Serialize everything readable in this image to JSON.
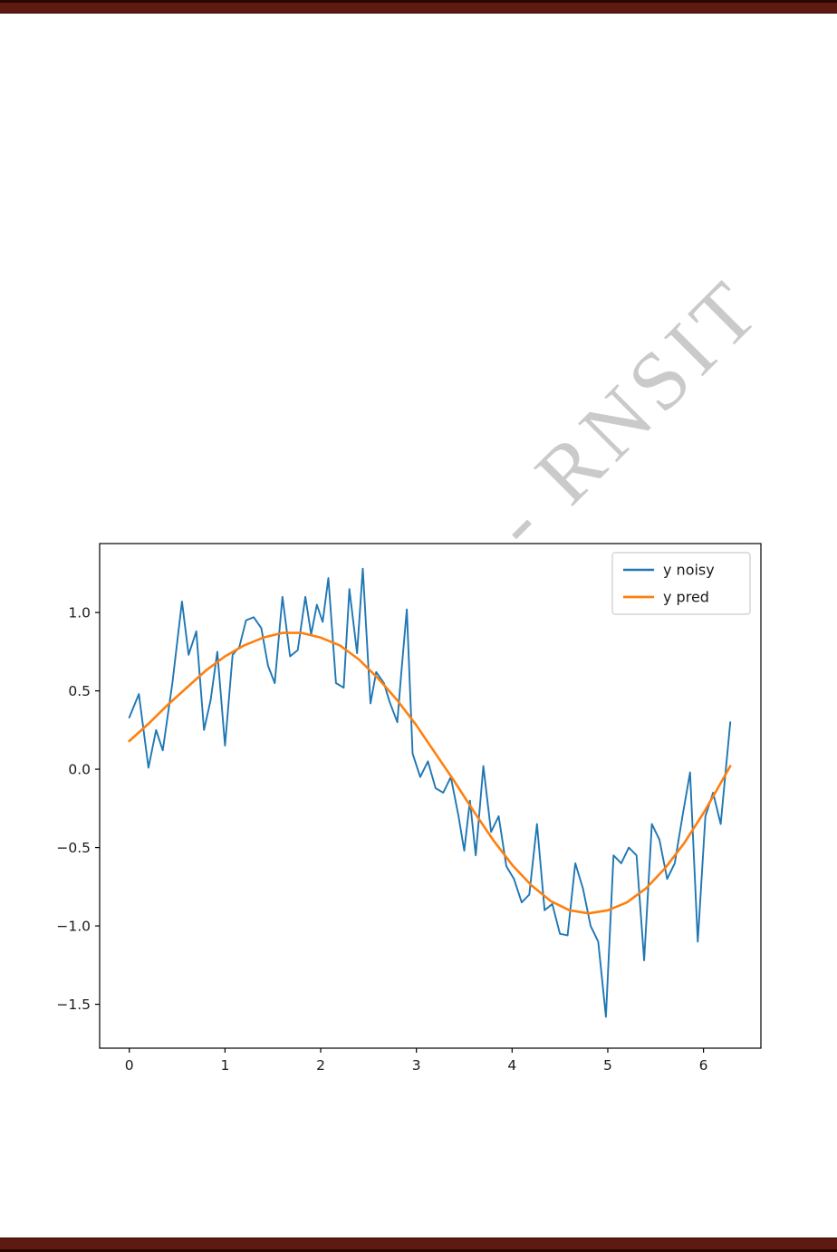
{
  "page": {
    "background_color": "#ffffff",
    "border_color": "#5e1a10"
  },
  "watermark": {
    "text": "- RNSIT",
    "color": "#b9b9b9"
  },
  "chart_data": {
    "type": "line",
    "title": "",
    "xlabel": "",
    "ylabel": "",
    "xlim": [
      -0.31,
      6.6
    ],
    "ylim": [
      -1.78,
      1.44
    ],
    "xticks": [
      0,
      1,
      2,
      3,
      4,
      5,
      6
    ],
    "yticks": [
      -1.5,
      -1.0,
      -0.5,
      0.0,
      0.5,
      1.0
    ],
    "grid": false,
    "legend_position": "upper right",
    "colors": {
      "noisy": "#1f77b4",
      "pred": "#ff7f0e",
      "axis": "#000000",
      "legend_border": "#cccccc"
    },
    "series": [
      {
        "name": "y noisy",
        "color": "#1f77b4",
        "x": [
          0.0,
          0.1,
          0.2,
          0.28,
          0.35,
          0.45,
          0.55,
          0.62,
          0.7,
          0.78,
          0.85,
          0.92,
          1.0,
          1.08,
          1.15,
          1.22,
          1.3,
          1.38,
          1.45,
          1.52,
          1.6,
          1.68,
          1.76,
          1.84,
          1.9,
          1.96,
          2.02,
          2.08,
          2.16,
          2.24,
          2.3,
          2.38,
          2.44,
          2.52,
          2.58,
          2.66,
          2.72,
          2.8,
          2.84,
          2.9,
          2.96,
          3.04,
          3.12,
          3.2,
          3.28,
          3.36,
          3.44,
          3.5,
          3.56,
          3.62,
          3.7,
          3.78,
          3.86,
          3.94,
          4.02,
          4.1,
          4.18,
          4.26,
          4.34,
          4.42,
          4.5,
          4.58,
          4.66,
          4.74,
          4.82,
          4.9,
          4.98,
          5.06,
          5.14,
          5.22,
          5.3,
          5.38,
          5.46,
          5.54,
          5.62,
          5.7,
          5.78,
          5.86,
          5.94,
          6.02,
          6.1,
          6.18,
          6.28
        ],
        "y": [
          0.33,
          0.48,
          0.01,
          0.25,
          0.12,
          0.55,
          1.07,
          0.73,
          0.88,
          0.25,
          0.44,
          0.75,
          0.15,
          0.73,
          0.78,
          0.95,
          0.97,
          0.9,
          0.66,
          0.55,
          1.1,
          0.72,
          0.76,
          1.1,
          0.86,
          1.05,
          0.94,
          1.22,
          0.55,
          0.52,
          1.15,
          0.74,
          1.28,
          0.42,
          0.62,
          0.55,
          0.43,
          0.3,
          0.6,
          1.02,
          0.1,
          -0.05,
          0.05,
          -0.12,
          -0.15,
          -0.05,
          -0.3,
          -0.52,
          -0.2,
          -0.55,
          0.02,
          -0.4,
          -0.3,
          -0.62,
          -0.7,
          -0.85,
          -0.8,
          -0.35,
          -0.9,
          -0.86,
          -1.05,
          -1.06,
          -0.6,
          -0.76,
          -1.0,
          -1.1,
          -1.58,
          -0.55,
          -0.6,
          -0.5,
          -0.55,
          -1.22,
          -0.35,
          -0.45,
          -0.7,
          -0.6,
          -0.3,
          -0.02,
          -1.1,
          -0.3,
          -0.15,
          -0.35,
          0.3
        ]
      },
      {
        "name": "y pred",
        "color": "#ff7f0e",
        "x": [
          0.0,
          0.2,
          0.4,
          0.6,
          0.8,
          1.0,
          1.2,
          1.4,
          1.6,
          1.8,
          2.0,
          2.2,
          2.4,
          2.6,
          2.8,
          3.0,
          3.2,
          3.4,
          3.6,
          3.8,
          4.0,
          4.2,
          4.4,
          4.6,
          4.8,
          5.0,
          5.2,
          5.4,
          5.6,
          5.8,
          6.0,
          6.15,
          6.28
        ],
        "y": [
          0.18,
          0.29,
          0.41,
          0.52,
          0.63,
          0.72,
          0.79,
          0.84,
          0.87,
          0.87,
          0.84,
          0.79,
          0.7,
          0.58,
          0.44,
          0.28,
          0.1,
          -0.08,
          -0.27,
          -0.45,
          -0.61,
          -0.74,
          -0.84,
          -0.9,
          -0.92,
          -0.9,
          -0.85,
          -0.76,
          -0.63,
          -0.47,
          -0.28,
          -0.12,
          0.02
        ]
      }
    ]
  }
}
